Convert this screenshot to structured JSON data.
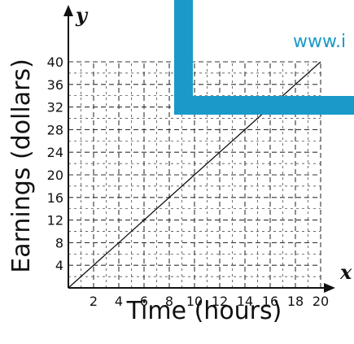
{
  "chart_data": {
    "type": "line",
    "title": "",
    "xlabel": "Time (hours)",
    "ylabel": "Earnings (dollars)",
    "x_var": "x",
    "y_var": "y",
    "x_ticks": [
      "2",
      "4",
      "6",
      "8",
      "10",
      "12",
      "14",
      "16",
      "18",
      "20"
    ],
    "y_ticks": [
      "4",
      "8",
      "12",
      "16",
      "20",
      "24",
      "28",
      "32",
      "36",
      "40"
    ],
    "xlim": [
      0,
      21
    ],
    "ylim": [
      0,
      42
    ],
    "grid": true,
    "grid_style": "dashed",
    "series": [
      {
        "x": [
          0,
          20
        ],
        "y": [
          0,
          40
        ],
        "color": "#111111"
      }
    ]
  },
  "watermark": {
    "text": "www.i",
    "color": "#1a9ac9"
  }
}
